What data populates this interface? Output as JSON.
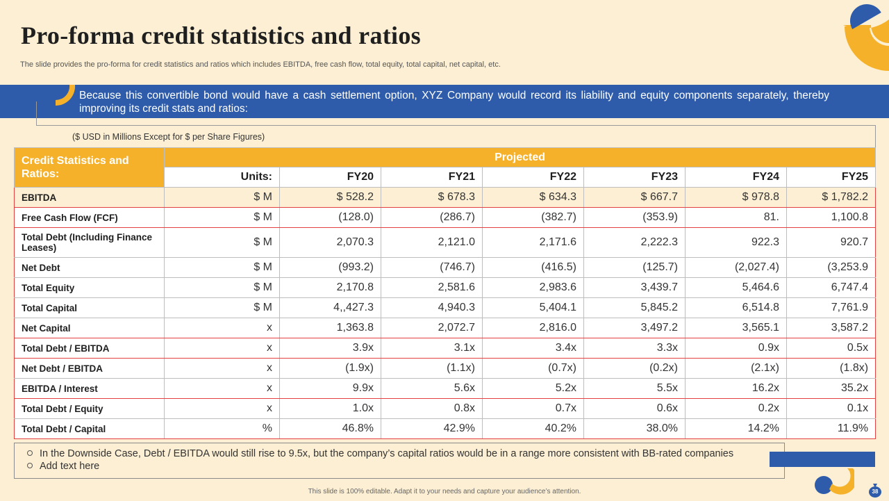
{
  "title": "Pro-forma  credit statistics  and ratios",
  "subtitle": "The slide provides the pro-forma for credit statistics and ratios which includes EBITDA, free cash flow, total equity, total capital, net capital, etc.",
  "banner": "Because this convertible bond would have a cash settlement option, XYZ Company would record its liability and equity components separately, thereby improving its credit stats and ratios:",
  "units_note": "($ USD in Millions Except for $ per Share Figures)",
  "table": {
    "header_title": "Credit Statistics and Ratios:",
    "projected": "Projected",
    "units_header": "Units:",
    "years": [
      "FY20",
      "FY21",
      "FY22",
      "FY23",
      "FY24",
      "FY25"
    ],
    "rows": [
      {
        "label": "EBITDA",
        "unit": "$ M",
        "values": [
          "$ 528.2",
          "$ 678.3",
          "$ 634.3",
          "$ 667.7",
          "$ 978.8",
          "$ 1,782.2"
        ]
      },
      {
        "label": "Free Cash Flow (FCF)",
        "unit": "$ M",
        "values": [
          "(128.0)",
          "(286.7)",
          "(382.7)",
          "(353.9)",
          "81.",
          "1,100.8"
        ]
      },
      {
        "label": "Total Debt (Including Finance Leases)",
        "unit": "$ M",
        "values": [
          "2,070.3",
          "2,121.0",
          "2,171.6",
          "2,222.3",
          "922.3",
          "920.7"
        ]
      },
      {
        "label": "Net Debt",
        "unit": "$ M",
        "values": [
          "(993.2)",
          "(746.7)",
          "(416.5)",
          "(125.7)",
          "(2,027.4)",
          "(3,253.9"
        ]
      },
      {
        "label": "Total Equity",
        "unit": "$ M",
        "values": [
          "2,170.8",
          "2,581.6",
          "2,983.6",
          "3,439.7",
          "5,464.6",
          "6,747.4"
        ]
      },
      {
        "label": "Total Capital",
        "unit": "$ M",
        "values": [
          "4,,427.3",
          "4,940.3",
          "5,404.1",
          "5,845.2",
          "6,514.8",
          "7,761.9"
        ]
      },
      {
        "label": "Net Capital",
        "unit": "x",
        "values": [
          "1,363.8",
          "2,072.7",
          "2,816.0",
          "3,497.2",
          "3,565.1",
          "3,587.2"
        ]
      },
      {
        "label": "Total Debt / EBITDA",
        "unit": "x",
        "values": [
          "3.9x",
          "3.1x",
          "3.4x",
          "3.3x",
          "0.9x",
          "0.5x"
        ]
      },
      {
        "label": "Net Debt / EBITDA",
        "unit": "x",
        "values": [
          "(1.9x)",
          "(1.1x)",
          "(0.7x)",
          "(0.2x)",
          "(2.1x)",
          "(1.8x)"
        ]
      },
      {
        "label": "EBITDA  / Interest",
        "unit": "x",
        "values": [
          "9.9x",
          "5.6x",
          "5.2x",
          "5.5x",
          "16.2x",
          "35.2x"
        ]
      },
      {
        "label": "Total Debt / Equity",
        "unit": "x",
        "values": [
          "1.0x",
          "0.8x",
          "0.7x",
          "0.6x",
          "0.2x",
          "0.1x"
        ]
      },
      {
        "label": "Total Debt / Capital",
        "unit": "%",
        "values": [
          "46.8%",
          "42.9%",
          "40.2%",
          "38.0%",
          "14.2%",
          "11.9%"
        ]
      }
    ]
  },
  "notes": [
    "In the Downside Case, Debt / EBITDA would still rise to 9.5x, but the company’s capital ratios would be in a range more consistent with BB-rated companies",
    "Add text here"
  ],
  "footer": "This slide is 100% editable. Adapt it to your needs and capture your audience’s attention.",
  "page_number": "38",
  "colors": {
    "background": "#FCEFD3",
    "accent_yellow": "#F6B12A",
    "accent_blue": "#2E5CAB",
    "highlight_red": "#E34040"
  }
}
